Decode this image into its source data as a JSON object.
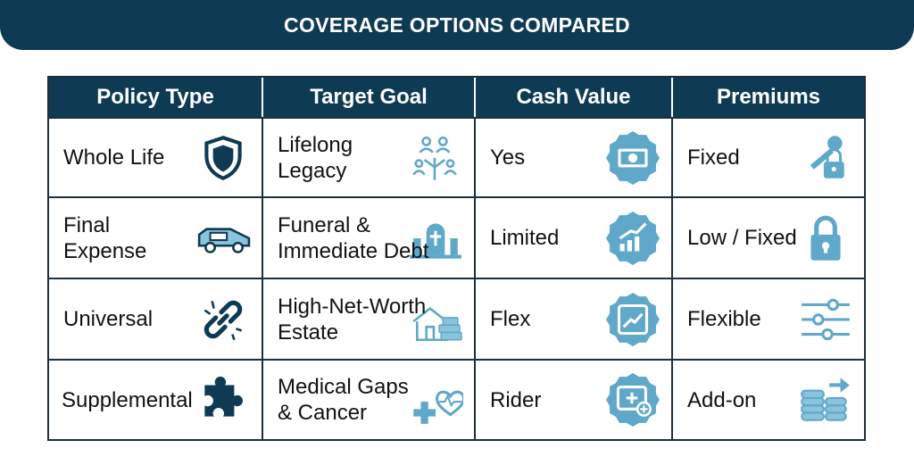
{
  "header": {
    "title": "COVERAGE OPTIONS COMPARED"
  },
  "table": {
    "columns": [
      "Policy Type",
      "Target Goal",
      "Cash Value",
      "Premiums"
    ],
    "rows": [
      [
        "Whole Life",
        "Lifelong\nLegacy",
        "Yes",
        "Fixed"
      ],
      [
        "Final\nExpense",
        "Funeral &\nImmediate Debt",
        "Limited",
        "Low / Fixed"
      ],
      [
        "Universal",
        "High-Net-Worth\nEstate",
        "Flex",
        "Flexible"
      ],
      [
        "Supplemental",
        "Medical Gaps\n& Cancer",
        "Rider",
        "Add-on"
      ]
    ]
  }
}
